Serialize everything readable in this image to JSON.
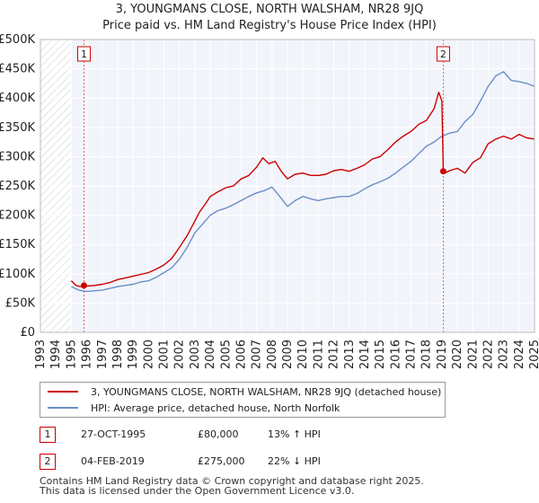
{
  "chart_data": {
    "type": "line",
    "title": "3, YOUNGMANS CLOSE, NORTH WALSHAM, NR28 9JQ",
    "subtitle": "Price paid vs. HM Land Registry's House Price Index (HPI)",
    "xlabel": "",
    "ylabel": "",
    "xlim": [
      1993,
      2025
    ],
    "ylim": [
      0,
      500000
    ],
    "x_ticks": [
      "1993",
      "1994",
      "1995",
      "1996",
      "1997",
      "1998",
      "1999",
      "2000",
      "2001",
      "2002",
      "2003",
      "2004",
      "2005",
      "2006",
      "2007",
      "2008",
      "2009",
      "2010",
      "2011",
      "2012",
      "2013",
      "2014",
      "2015",
      "2016",
      "2017",
      "2018",
      "2019",
      "2020",
      "2021",
      "2022",
      "2023",
      "2024",
      "2025"
    ],
    "y_ticks": [
      {
        "value": 0,
        "label": "£0"
      },
      {
        "value": 50000,
        "label": "£50K"
      },
      {
        "value": 100000,
        "label": "£100K"
      },
      {
        "value": 150000,
        "label": "£150K"
      },
      {
        "value": 200000,
        "label": "£200K"
      },
      {
        "value": 250000,
        "label": "£250K"
      },
      {
        "value": 300000,
        "label": "£300K"
      },
      {
        "value": 350000,
        "label": "£350K"
      },
      {
        "value": 400000,
        "label": "£400K"
      },
      {
        "value": 450000,
        "label": "£450K"
      },
      {
        "value": 500000,
        "label": "£500K"
      }
    ],
    "grid": true,
    "hatched_before": 1995.0,
    "series": [
      {
        "name": "3, YOUNGMANS CLOSE, NORTH WALSHAM, NR28 9JQ (detached house)",
        "color": "#cc0000",
        "x": [
          1995.0,
          1995.3,
          1995.6,
          1995.82,
          1996.0,
          1996.5,
          1997.0,
          1997.5,
          1998.0,
          1998.5,
          1999.0,
          1999.5,
          2000.0,
          2000.5,
          2001.0,
          2001.5,
          2002.0,
          2002.5,
          2003.0,
          2003.3,
          2003.7,
          2004.0,
          2004.5,
          2005.0,
          2005.5,
          2006.0,
          2006.5,
          2007.0,
          2007.4,
          2007.8,
          2008.2,
          2008.6,
          2009.0,
          2009.5,
          2010.0,
          2010.5,
          2011.0,
          2011.5,
          2012.0,
          2012.5,
          2013.0,
          2013.5,
          2014.0,
          2014.5,
          2015.0,
          2015.5,
          2016.0,
          2016.5,
          2017.0,
          2017.5,
          2018.0,
          2018.5,
          2018.8,
          2019.0,
          2019.09,
          2019.2,
          2019.5,
          2020.0,
          2020.5,
          2021.0,
          2021.5,
          2022.0,
          2022.5,
          2023.0,
          2023.5,
          2024.0,
          2024.5,
          2025.0
        ],
        "values": [
          88000,
          80000,
          78000,
          80000,
          79000,
          80000,
          82000,
          85000,
          90000,
          93000,
          96000,
          99000,
          102000,
          108000,
          115000,
          126000,
          145000,
          165000,
          190000,
          205000,
          220000,
          232000,
          240000,
          247000,
          250000,
          262000,
          268000,
          282000,
          298000,
          288000,
          292000,
          275000,
          262000,
          270000,
          272000,
          268000,
          268000,
          270000,
          276000,
          278000,
          275000,
          280000,
          286000,
          296000,
          300000,
          312000,
          325000,
          335000,
          343000,
          355000,
          362000,
          382000,
          410000,
          395000,
          275000,
          272000,
          276000,
          280000,
          272000,
          290000,
          298000,
          322000,
          330000,
          335000,
          330000,
          338000,
          332000,
          330000
        ]
      },
      {
        "name": "HPI: Average price, detached house, North Norfolk",
        "color": "#6a8fc8",
        "x": [
          1995.0,
          1995.5,
          1996.0,
          1996.5,
          1997.0,
          1997.5,
          1998.0,
          1998.5,
          1999.0,
          1999.5,
          2000.0,
          2000.5,
          2001.0,
          2001.5,
          2002.0,
          2002.5,
          2003.0,
          2003.5,
          2004.0,
          2004.5,
          2005.0,
          2005.5,
          2006.0,
          2006.5,
          2007.0,
          2007.5,
          2008.0,
          2008.5,
          2009.0,
          2009.5,
          2010.0,
          2010.5,
          2011.0,
          2011.5,
          2012.0,
          2012.5,
          2013.0,
          2013.5,
          2014.0,
          2014.5,
          2015.0,
          2015.5,
          2016.0,
          2016.5,
          2017.0,
          2017.5,
          2018.0,
          2018.5,
          2019.0,
          2019.5,
          2020.0,
          2020.5,
          2021.0,
          2021.5,
          2022.0,
          2022.5,
          2023.0,
          2023.5,
          2024.0,
          2024.5,
          2025.0
        ],
        "values": [
          78000,
          72000,
          70000,
          71000,
          72000,
          75000,
          78000,
          80000,
          82000,
          86000,
          88000,
          94000,
          102000,
          110000,
          125000,
          145000,
          170000,
          185000,
          200000,
          208000,
          212000,
          218000,
          225000,
          232000,
          238000,
          242000,
          248000,
          232000,
          215000,
          225000,
          232000,
          228000,
          225000,
          228000,
          230000,
          232000,
          232000,
          237000,
          245000,
          252000,
          257000,
          263000,
          272000,
          282000,
          292000,
          305000,
          318000,
          325000,
          335000,
          340000,
          343000,
          360000,
          372000,
          395000,
          420000,
          438000,
          445000,
          430000,
          428000,
          425000,
          420000
        ]
      }
    ],
    "sales": [
      {
        "label": "1",
        "x": 1995.82,
        "price": 80000,
        "date": "27-OCT-1995",
        "price_text": "£80,000",
        "hpi_text": "13% ↑ HPI"
      },
      {
        "label": "2",
        "x": 2019.09,
        "price": 275000,
        "date": "04-FEB-2019",
        "price_text": "£275,000",
        "hpi_text": "22% ↓ HPI"
      }
    ]
  },
  "footer": {
    "line1": "Contains HM Land Registry data © Crown copyright and database right 2025.",
    "line2": "This data is licensed under the Open Government Licence v3.0."
  }
}
